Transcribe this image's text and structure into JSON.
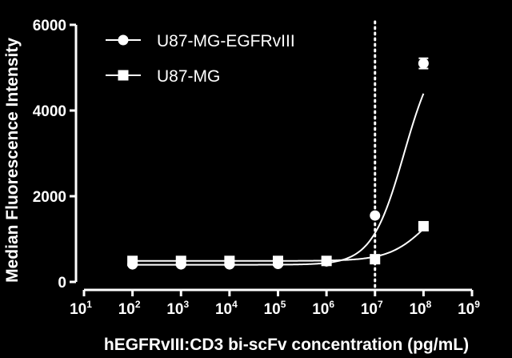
{
  "chart_data": {
    "type": "scatter",
    "xlabel": "hEGFRvIII:CD3 bi-scFv concentration  (pg/mL)",
    "ylabel": "Median Fluorescence Intensity",
    "x_scale": "log10",
    "xlim": [
      10,
      1000000000
    ],
    "x_tick_exponents": [
      "1",
      "2",
      "3",
      "4",
      "5",
      "6",
      "7",
      "8",
      "9"
    ],
    "x_tick_base": "10",
    "ylim": [
      0,
      6000
    ],
    "y_ticks": [
      "0",
      "2000",
      "4000",
      "6000"
    ],
    "y_tick_values": [
      0,
      2000,
      4000,
      6000
    ],
    "legend_position": "top-left",
    "reference_line": {
      "x": 10000000,
      "style": "dotted",
      "color": "#ffffff"
    },
    "series": [
      {
        "name": "U87-MG-EGFRvIII",
        "marker": "circle",
        "x": [
          100,
          1000,
          10000,
          100000,
          1000000,
          10000000,
          100000000
        ],
        "y": [
          410,
          410,
          410,
          420,
          480,
          1550,
          5100
        ],
        "error": [
          0,
          0,
          0,
          0,
          0,
          0,
          120
        ],
        "fit_curve": {
          "bottom": 400,
          "top": 5600,
          "logEC50": 7.6,
          "hill": 1.3
        }
      },
      {
        "name": "U87-MG",
        "marker": "square",
        "x": [
          100,
          1000,
          10000,
          100000,
          1000000,
          10000000,
          100000000
        ],
        "y": [
          490,
          490,
          490,
          490,
          490,
          530,
          1300
        ],
        "error": [
          0,
          0,
          0,
          0,
          0,
          0,
          0
        ],
        "fit_curve": {
          "bottom": 490,
          "top": 2200,
          "logEC50": 8.1,
          "hill": 1.1
        }
      }
    ]
  }
}
